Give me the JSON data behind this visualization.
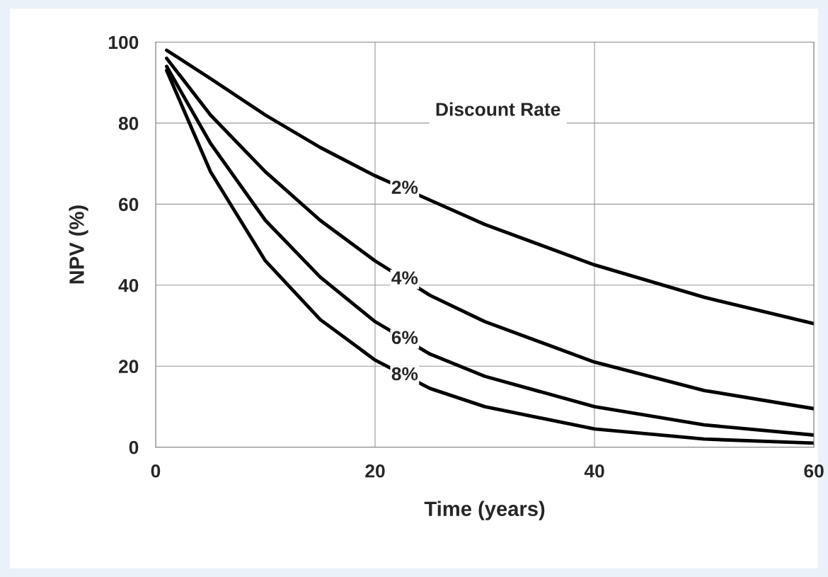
{
  "chart_data": {
    "type": "line",
    "xlabel": "Time (years)",
    "ylabel": "NPV (%)",
    "annotations": [
      "Discount Rate"
    ],
    "x": [
      1,
      5,
      10,
      15,
      20,
      25,
      30,
      40,
      50,
      60
    ],
    "series": [
      {
        "name": "2%",
        "color": "#000000",
        "values": [
          98,
          91,
          82,
          74,
          67,
          61,
          55,
          45,
          37,
          30.5
        ]
      },
      {
        "name": "4%",
        "color": "#000000",
        "values": [
          96,
          82,
          68,
          56,
          46,
          37.5,
          31,
          21,
          14,
          9.5
        ]
      },
      {
        "name": "6%",
        "color": "#000000",
        "values": [
          94,
          75,
          56,
          42,
          31,
          23,
          17.5,
          10,
          5.5,
          3
        ]
      },
      {
        "name": "8%",
        "color": "#000000",
        "values": [
          93,
          68,
          46,
          31.5,
          21.5,
          14.5,
          10,
          4.5,
          2,
          1
        ]
      }
    ],
    "xlim": [
      0,
      60
    ],
    "xticks": [
      0,
      20,
      40,
      60
    ],
    "ylim": [
      0,
      100
    ],
    "yticks": [
      0,
      20,
      40,
      60,
      80,
      100
    ],
    "grid": true,
    "legend": false,
    "marker": "none",
    "line_style": "solid"
  }
}
